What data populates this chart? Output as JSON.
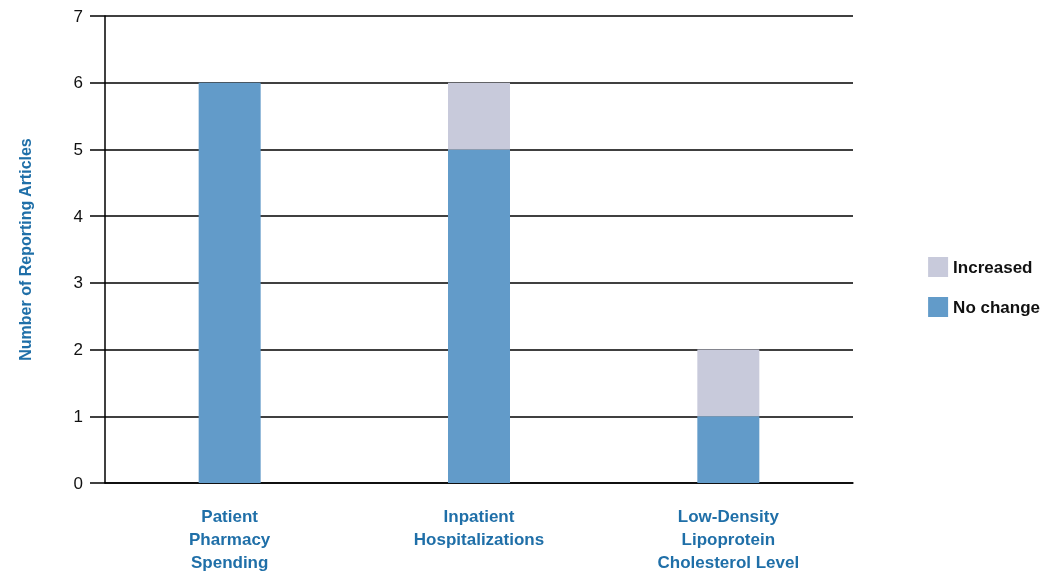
{
  "chart_data": {
    "type": "bar",
    "ylabel": "Number of Reporting Articles",
    "categories": [
      "Patient\nPharmacy\nSpending",
      "Inpatient\nHospitalizations",
      "Low-Density\nLipoprotein\nCholesterol Level"
    ],
    "series": [
      {
        "name": "No change",
        "color": "#629bc9",
        "values": [
          6,
          5,
          1
        ]
      },
      {
        "name": "Increased",
        "color": "#c8cadb",
        "values": [
          0,
          1,
          1
        ]
      }
    ],
    "stacked": true,
    "ylim": [
      0,
      7
    ],
    "yticks": [
      0,
      1,
      2,
      3,
      4,
      5,
      6,
      7
    ],
    "grid": "y",
    "legend": "right"
  }
}
